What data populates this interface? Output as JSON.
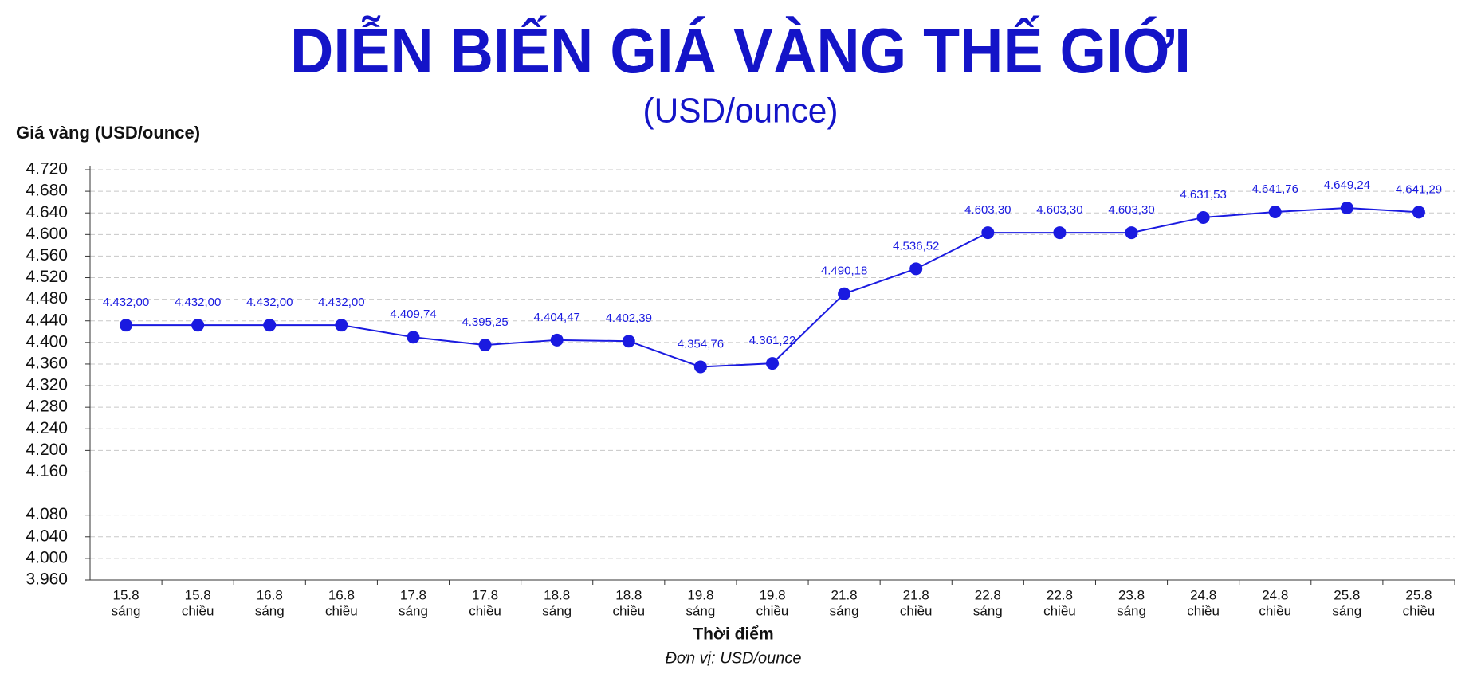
{
  "chart_data": {
    "type": "line",
    "title": "DIỄN BIẾN GIÁ VÀNG THẾ GIỚI",
    "subtitle": "(USD/ounce)",
    "y_axis_label": "Giá vàng (USD/ounce)",
    "x_axis_label": "Thời điểm",
    "note": "Đơn vị: USD/ounce",
    "categories": [
      [
        "15.8",
        "sáng"
      ],
      [
        "15.8",
        "chiều"
      ],
      [
        "16.8",
        "sáng"
      ],
      [
        "16.8",
        "chiều"
      ],
      [
        "17.8",
        "sáng"
      ],
      [
        "17.8",
        "chiều"
      ],
      [
        "18.8",
        "sáng"
      ],
      [
        "18.8",
        "chiều"
      ],
      [
        "19.8",
        "sáng"
      ],
      [
        "19.8",
        "chiều"
      ],
      [
        "21.8",
        "sáng"
      ],
      [
        "21.8",
        "chiều"
      ],
      [
        "22.8",
        "sáng"
      ],
      [
        "22.8",
        "chiều"
      ],
      [
        "23.8",
        "sáng"
      ],
      [
        "24.8",
        "chiều"
      ],
      [
        "24.8",
        "chiều"
      ],
      [
        "25.8",
        "sáng"
      ],
      [
        "25.8",
        "chiều"
      ]
    ],
    "series": [
      {
        "name": "Giá vàng",
        "color": "#1a1ae0",
        "values": [
          4432.0,
          4432.0,
          4432.0,
          4432.0,
          4409.74,
          4395.25,
          4404.47,
          4402.39,
          4354.76,
          4361.22,
          4490.18,
          4536.52,
          4603.3,
          4603.3,
          4603.3,
          4631.53,
          4641.76,
          4649.24,
          4641.29
        ],
        "value_labels": [
          "4.432,00",
          "4.432,00",
          "4.432,00",
          "4.432,00",
          "4.409,74",
          "4.395,25",
          "4.404,47",
          "4.402,39",
          "4.354,76",
          "4.361,22",
          "4.490,18",
          "4.536,52",
          "4.603,30",
          "4.603,30",
          "4.603,30",
          "4.631,53",
          "4.641,76",
          "4.649,24",
          "4.641,29"
        ]
      }
    ],
    "ylim": [
      3960,
      4720
    ],
    "yticks": [
      {
        "value": 4720,
        "label": "4.720"
      },
      {
        "value": 4680,
        "label": "4.680"
      },
      {
        "value": 4640,
        "label": "4.640"
      },
      {
        "value": 4600,
        "label": "4.600"
      },
      {
        "value": 4560,
        "label": "4.560"
      },
      {
        "value": 4520,
        "label": "4.520"
      },
      {
        "value": 4480,
        "label": "4.480"
      },
      {
        "value": 4440,
        "label": "4.440"
      },
      {
        "value": 4400,
        "label": "4.400"
      },
      {
        "value": 4360,
        "label": "4.360"
      },
      {
        "value": 4320,
        "label": "4.320"
      },
      {
        "value": 4280,
        "label": "4.280"
      },
      {
        "value": 4240,
        "label": "4.240"
      },
      {
        "value": 4200,
        "label": "4.200"
      },
      {
        "value": 4160,
        "label": "4.160"
      },
      {
        "value": 4080,
        "label": "4.080"
      },
      {
        "value": 4040,
        "label": "4.040"
      },
      {
        "value": 4000,
        "label": "4.000"
      },
      {
        "value": 3960,
        "label": "3.960"
      }
    ],
    "grid": true
  }
}
